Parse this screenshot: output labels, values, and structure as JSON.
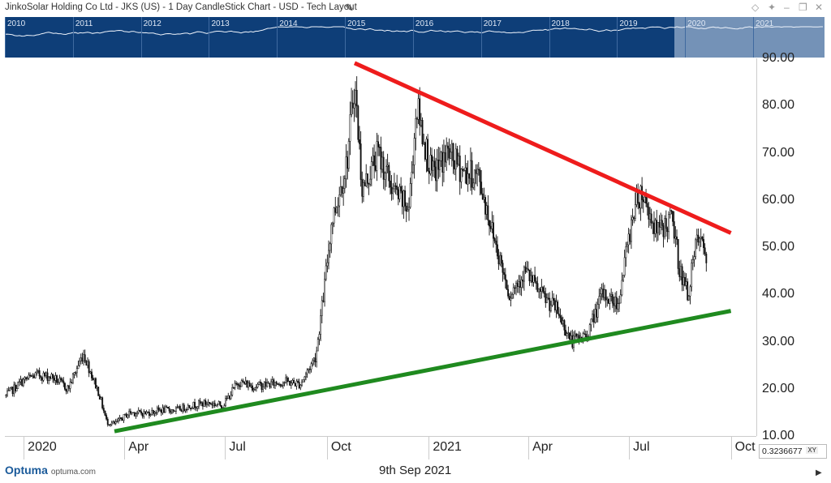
{
  "header": {
    "title": "JinkoSolar Holding Co Ltd - JKS (US) - 1 Day CandleStick Chart - USD - Tech Layout"
  },
  "overview": {
    "years": [
      "2010",
      "2011",
      "2012",
      "2013",
      "2014",
      "2015",
      "2016",
      "2017",
      "2018",
      "2019",
      "2020",
      "2021"
    ]
  },
  "footer": {
    "readout": "0.3236677",
    "readout_tag": "XY",
    "logo": "Optuma",
    "logo_url": "optuma.com",
    "date": "9th Sep 2021"
  },
  "colors": {
    "overview_bg": "#0e3e78",
    "resistance_line": "#ee1c1c",
    "support_line": "#1f8a1f",
    "candles": "#111111"
  },
  "chart_data": {
    "type": "candlestick",
    "ylim": [
      10,
      90
    ],
    "yticks": [
      "10.00",
      "20.00",
      "30.00",
      "40.00",
      "50.00",
      "60.00",
      "70.00",
      "80.00",
      "90.00"
    ],
    "xticks": [
      "2020",
      "Apr",
      "Jul",
      "Oct",
      "2021",
      "Apr",
      "Jul",
      "Oct"
    ],
    "series_close_weekly": [
      [
        "2019-12-16",
        18.5
      ],
      [
        "2019-12-30",
        21.5
      ],
      [
        "2020-01-13",
        23.0
      ],
      [
        "2020-01-27",
        22.5
      ],
      [
        "2020-02-10",
        20.0
      ],
      [
        "2020-02-24",
        27.5
      ],
      [
        "2020-03-09",
        19.0
      ],
      [
        "2020-03-16",
        13.0
      ],
      [
        "2020-03-23",
        12.5
      ],
      [
        "2020-04-06",
        15.0
      ],
      [
        "2020-04-20",
        14.8
      ],
      [
        "2020-05-04",
        15.5
      ],
      [
        "2020-05-18",
        15.5
      ],
      [
        "2020-06-01",
        16.5
      ],
      [
        "2020-06-15",
        17.0
      ],
      [
        "2020-06-29",
        16.5
      ],
      [
        "2020-07-13",
        21.5
      ],
      [
        "2020-07-27",
        20.5
      ],
      [
        "2020-08-10",
        21.0
      ],
      [
        "2020-08-24",
        21.5
      ],
      [
        "2020-09-07",
        21.0
      ],
      [
        "2020-09-21",
        27.0
      ],
      [
        "2020-09-28",
        40.0
      ],
      [
        "2020-10-05",
        55.0
      ],
      [
        "2020-10-19",
        68.0
      ],
      [
        "2020-10-26",
        85.0
      ],
      [
        "2020-11-02",
        62.0
      ],
      [
        "2020-11-16",
        70.0
      ],
      [
        "2020-11-30",
        62.0
      ],
      [
        "2020-12-14",
        58.0
      ],
      [
        "2020-12-21",
        80.0
      ],
      [
        "2021-01-04",
        65.0
      ],
      [
        "2021-01-18",
        70.0
      ],
      [
        "2021-02-01",
        66.0
      ],
      [
        "2021-02-15",
        65.0
      ],
      [
        "2021-03-01",
        52.0
      ],
      [
        "2021-03-15",
        40.0
      ],
      [
        "2021-03-29",
        45.0
      ],
      [
        "2021-04-12",
        40.0
      ],
      [
        "2021-04-26",
        37.0
      ],
      [
        "2021-05-10",
        30.0
      ],
      [
        "2021-05-24",
        31.5
      ],
      [
        "2021-06-07",
        40.0
      ],
      [
        "2021-06-21",
        38.0
      ],
      [
        "2021-07-05",
        58.0
      ],
      [
        "2021-07-12",
        62.0
      ],
      [
        "2021-07-26",
        53.0
      ],
      [
        "2021-08-09",
        56.0
      ],
      [
        "2021-08-16",
        45.0
      ],
      [
        "2021-08-23",
        40.0
      ],
      [
        "2021-09-01",
        52.0
      ],
      [
        "2021-09-09",
        48.0
      ]
    ],
    "trendlines": [
      {
        "role": "resistance",
        "from": [
          "2020-10-26",
          89.0
        ],
        "to": [
          "2021-10-01",
          53.0
        ]
      },
      {
        "role": "support",
        "from": [
          "2020-03-23",
          11.0
        ],
        "to": [
          "2021-10-01",
          36.5
        ]
      }
    ],
    "grid": false,
    "legend": "none"
  }
}
